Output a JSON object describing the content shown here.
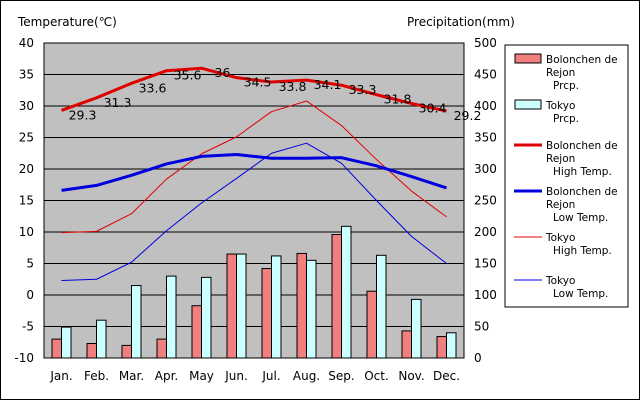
{
  "chart_data": {
    "type": "bar+line",
    "title": "",
    "ylabel_left": "Temperature(℃)",
    "ylabel_right": "Precipitation(mm)",
    "ylim_left": [
      -10,
      40
    ],
    "ylim_right": [
      0,
      500
    ],
    "left_ticks": [
      "40",
      "35",
      "30",
      "25",
      "20",
      "15",
      "10",
      "5",
      "0",
      "-5",
      "-10"
    ],
    "right_ticks": [
      "500",
      "450",
      "400",
      "350",
      "300",
      "250",
      "200",
      "150",
      "100",
      "50",
      "0"
    ],
    "categories": [
      "Jan.",
      "Feb.",
      "Mar.",
      "Apr.",
      "May",
      "Jun.",
      "Jul.",
      "Aug.",
      "Sep.",
      "Oct.",
      "Nov.",
      "Dec."
    ],
    "series": [
      {
        "name": "Bolonchen de Rejon Prcp.",
        "type": "bar",
        "axis": "right",
        "unit": "mm",
        "color": "#f08080",
        "values": [
          30,
          23,
          20,
          30,
          83,
          165,
          142,
          166,
          196,
          106,
          43,
          34
        ]
      },
      {
        "name": "Tokyo Prcp.",
        "type": "bar",
        "axis": "right",
        "unit": "mm",
        "color": "#ccffff",
        "values": [
          49,
          60,
          115,
          130,
          128,
          165,
          162,
          155,
          209,
          163,
          93,
          40
        ]
      },
      {
        "name": "Bolonchen de Rejon High Temp.",
        "type": "line",
        "axis": "left",
        "color": "#e00000",
        "width": 3,
        "values": [
          29.3,
          31.3,
          33.6,
          35.6,
          36,
          34.5,
          33.8,
          34.1,
          33.3,
          31.8,
          30.4,
          29.2
        ]
      },
      {
        "name": "Bolonchen de Rejon Low Temp.",
        "type": "line",
        "axis": "left",
        "color": "#0000e0",
        "width": 3,
        "values": [
          16.6,
          17.4,
          19,
          20.8,
          22,
          22.3,
          21.7,
          21.7,
          21.8,
          20.5,
          18.8,
          17
        ]
      },
      {
        "name": "Tokyo High Temp.",
        "type": "line",
        "axis": "left",
        "color": "#e00000",
        "width": 1,
        "values": [
          9.9,
          10.1,
          12.9,
          18.4,
          22.4,
          25.1,
          29.1,
          30.8,
          26.9,
          21.5,
          16.5,
          12.4
        ]
      },
      {
        "name": "Tokyo Low Temp.",
        "type": "line",
        "axis": "left",
        "color": "#0000e0",
        "width": 1,
        "values": [
          2.3,
          2.5,
          5.2,
          10.2,
          14.6,
          18.5,
          22.5,
          24.1,
          20.9,
          15.0,
          9.3,
          5.0
        ]
      }
    ],
    "data_labels": {
      "series": "Bolonchen de Rejon High Temp.",
      "labels": [
        "29.3",
        "31.3",
        "33.6",
        "35.6",
        "36",
        "34.5",
        "33.8",
        "34.1",
        "33.3",
        "31.8",
        "30.4",
        "29.2"
      ]
    },
    "legend": {
      "position": "right",
      "entries": [
        {
          "lines": [
            "Bolonchen de",
            "Rejon",
            "Prcp."
          ],
          "kind": "bar",
          "series": 0
        },
        {
          "lines": [
            "Tokyo",
            "Prcp."
          ],
          "kind": "bar",
          "series": 1
        },
        {
          "lines": [
            "Bolonchen de",
            "Rejon",
            "High Temp."
          ],
          "kind": "line",
          "series": 2
        },
        {
          "lines": [
            "Bolonchen de",
            "Rejon",
            "Low Temp."
          ],
          "kind": "line",
          "series": 3
        },
        {
          "lines": [
            "Tokyo",
            "High Temp."
          ],
          "kind": "line",
          "series": 4
        },
        {
          "lines": [
            "Tokyo",
            "Low Temp."
          ],
          "kind": "line",
          "series": 5
        }
      ]
    },
    "plot_background": "#c0c0c0",
    "grid": true
  }
}
